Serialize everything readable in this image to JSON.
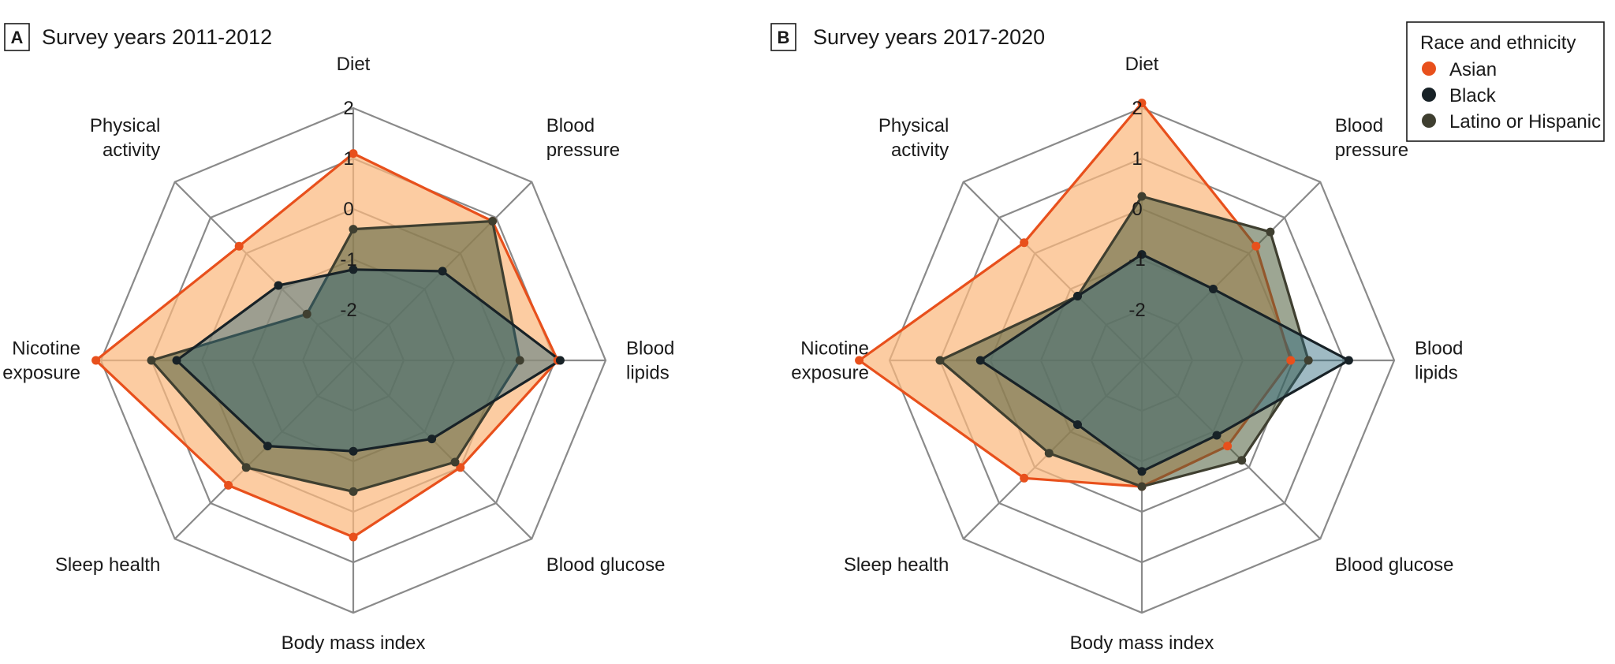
{
  "chart_data": [
    {
      "type": "radar",
      "panel": "A",
      "title": "Survey years 2011-2012",
      "axes": [
        "Diet",
        "Blood pressure",
        "Blood lipids",
        "Blood glucose",
        "Body mass index",
        "Sleep health",
        "Nicotine exposure",
        "Physical activity"
      ],
      "axis_labels": [
        [
          "Diet"
        ],
        [
          "Blood",
          "pressure"
        ],
        [
          "Blood",
          "lipids"
        ],
        [
          "Blood glucose"
        ],
        [
          "Body mass index"
        ],
        [
          "Sleep health"
        ],
        [
          "Nicotine",
          "exposure"
        ],
        [
          "Physical",
          "activity"
        ]
      ],
      "rlim": [
        -3,
        2
      ],
      "ticks": [
        2,
        1,
        0,
        -1,
        -2
      ],
      "tick_labels": [
        "2",
        "1",
        "0",
        "-1",
        "-2"
      ],
      "series": [
        {
          "name": "Asian",
          "values": [
            1.1,
            0.9,
            1.05,
            0.0,
            0.5,
            0.5,
            2.1,
            0.2
          ]
        },
        {
          "name": "Latino or Hispanic",
          "values": [
            -0.4,
            0.9,
            0.3,
            -0.15,
            -0.4,
            0.0,
            1.0,
            -1.7
          ]
        },
        {
          "name": "Black",
          "values": [
            -1.2,
            -0.5,
            1.1,
            -0.8,
            -1.2,
            -0.6,
            0.5,
            -0.9
          ]
        }
      ]
    },
    {
      "type": "radar",
      "panel": "B",
      "title": "Survey years 2017-2020",
      "axes": [
        "Diet",
        "Blood pressure",
        "Blood lipids",
        "Blood glucose",
        "Body mass index",
        "Sleep health",
        "Nicotine exposure",
        "Physical activity"
      ],
      "axis_labels": [
        [
          "Diet"
        ],
        [
          "Blood",
          "pressure"
        ],
        [
          "Blood",
          "lipids"
        ],
        [
          "Blood glucose"
        ],
        [
          "Body mass index"
        ],
        [
          "Sleep health"
        ],
        [
          "Nicotine",
          "exposure"
        ],
        [
          "Physical",
          "activity"
        ]
      ],
      "rlim": [
        -3,
        2
      ],
      "ticks": [
        2,
        1,
        0,
        -1,
        -2
      ],
      "tick_labels": [
        "2",
        "1",
        "0",
        "-1",
        "-2"
      ],
      "series": [
        {
          "name": "Asian",
          "values": [
            2.1,
            0.2,
            -0.05,
            -0.6,
            -0.5,
            0.3,
            2.6,
            0.3
          ]
        },
        {
          "name": "Latino or Hispanic",
          "values": [
            0.25,
            0.6,
            0.3,
            -0.2,
            -0.5,
            -0.4,
            1.0,
            -1.2
          ]
        },
        {
          "name": "Black",
          "values": [
            -0.9,
            -1.0,
            1.1,
            -0.9,
            -0.8,
            -1.2,
            0.2,
            -1.2
          ]
        }
      ]
    }
  ],
  "legend": {
    "title": "Race and ethnicity",
    "items": [
      {
        "label": "Asian",
        "color": "#e8501c"
      },
      {
        "label": "Black",
        "color": "#182227"
      },
      {
        "label": "Latino or Hispanic",
        "color": "#3f3f30"
      }
    ]
  },
  "colors": {
    "asian_stroke": "#e8501c",
    "asian_fill": "#fbb87e",
    "black_stroke": "#182227",
    "black_fill": "#2b6779",
    "latino_stroke": "#3f3f30",
    "latino_fill": "#4d5d3a",
    "grid": "#8a8a8a"
  }
}
